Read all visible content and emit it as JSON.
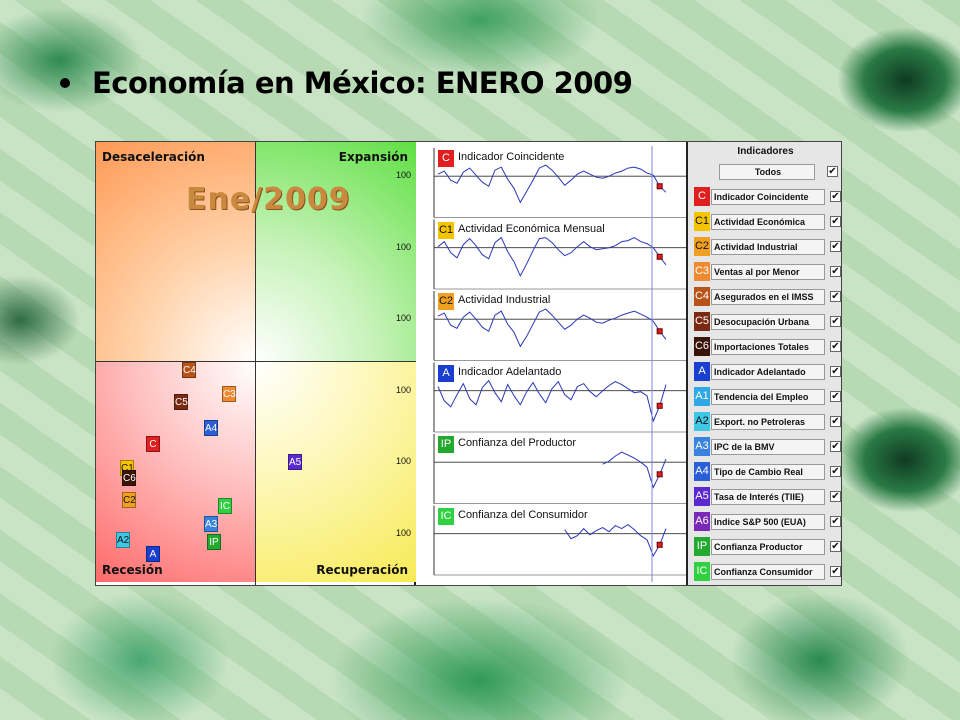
{
  "slide": {
    "title": "Economía en México: ENERO 2009"
  },
  "quadrant": {
    "labels": {
      "top_left": "Desaceleración",
      "top_right": "Expansión",
      "bottom_left": "Recesión",
      "bottom_right": "Recuperación"
    },
    "date_label": "Ene/2009"
  },
  "chart_data": {
    "type": "line",
    "axis_reference_label": "100",
    "series": [
      {
        "code": "C",
        "name": "Indicador Coincidente",
        "values": [
          100.2,
          100.5,
          99.6,
          99.3,
          100.4,
          100.8,
          100.1,
          99.4,
          99.0,
          100.6,
          100.9,
          99.7,
          98.8,
          97.4,
          98.5,
          99.6,
          100.8,
          101.1,
          100.6,
          99.9,
          99.1,
          99.6,
          100.2,
          100.5,
          100.2,
          99.9,
          99.8,
          100.0,
          100.3,
          100.5,
          100.8,
          100.9,
          100.7,
          100.3,
          100.1,
          99.0,
          98.4
        ]
      },
      {
        "code": "C1",
        "name": "Actividad Económica Mensual",
        "values": [
          100.1,
          100.6,
          99.5,
          99.0,
          100.3,
          100.9,
          100.2,
          99.3,
          98.9,
          100.5,
          101.0,
          99.6,
          98.6,
          97.2,
          98.4,
          99.7,
          100.9,
          101.0,
          100.5,
          99.8,
          99.2,
          99.5,
          100.1,
          100.6,
          100.1,
          99.8,
          99.9,
          100.0,
          100.2,
          100.6,
          100.7,
          101.0,
          100.6,
          100.4,
          100.0,
          99.1,
          98.3
        ]
      },
      {
        "code": "C2",
        "name": "Actividad Industrial",
        "values": [
          100.3,
          100.6,
          99.4,
          99.1,
          100.2,
          100.7,
          100.0,
          99.2,
          98.8,
          100.4,
          100.8,
          99.5,
          98.7,
          97.3,
          98.3,
          99.5,
          100.7,
          101.0,
          100.4,
          99.7,
          99.0,
          99.4,
          100.0,
          100.4,
          100.1,
          99.7,
          99.6,
          99.9,
          100.1,
          100.4,
          100.6,
          100.8,
          100.5,
          100.2,
          99.8,
          98.8,
          98.0
        ]
      },
      {
        "code": "A",
        "name": "Indicador Adelantado",
        "values": [
          100.4,
          99.0,
          98.4,
          99.6,
          100.7,
          99.2,
          98.6,
          100.3,
          101.0,
          99.8,
          98.9,
          100.6,
          99.5,
          98.6,
          99.9,
          100.8,
          99.7,
          98.8,
          100.2,
          100.9,
          99.6,
          99.1,
          100.4,
          100.7,
          99.9,
          99.4,
          100.0,
          100.5,
          100.9,
          100.6,
          100.2,
          99.8,
          99.9,
          99.5,
          97.0,
          98.5,
          100.6
        ]
      },
      {
        "code": "IP",
        "name": "Confianza del Productor",
        "values": [
          null,
          null,
          null,
          null,
          null,
          null,
          null,
          null,
          null,
          null,
          null,
          null,
          null,
          null,
          null,
          null,
          null,
          null,
          null,
          null,
          null,
          null,
          null,
          null,
          null,
          null,
          99.8,
          100.1,
          100.6,
          101.0,
          100.7,
          100.4,
          100.0,
          99.5,
          97.5,
          98.8,
          100.3
        ]
      },
      {
        "code": "IC",
        "name": "Confianza del Consumidor",
        "values": [
          null,
          null,
          null,
          null,
          null,
          null,
          null,
          null,
          null,
          null,
          null,
          null,
          null,
          null,
          null,
          null,
          null,
          null,
          null,
          null,
          100.4,
          99.5,
          99.8,
          100.5,
          99.9,
          100.3,
          100.6,
          100.2,
          100.8,
          100.5,
          100.9,
          100.4,
          99.8,
          99.4,
          97.8,
          98.9,
          100.5
        ]
      }
    ]
  },
  "indicators": {
    "title": "Indicadores",
    "all_label": "Todos",
    "check_mark": "✔",
    "items": [
      {
        "code": "C",
        "label": "Indicador Coincidente",
        "color": "#e02020",
        "text_color": "#ffffff"
      },
      {
        "code": "C1",
        "label": "Actividad Económica",
        "color": "#f5c400",
        "text_color": "#111111"
      },
      {
        "code": "C2",
        "label": "Actividad Industrial",
        "color": "#f0a020",
        "text_color": "#111111"
      },
      {
        "code": "C3",
        "label": "Ventas al por Menor",
        "color": "#f08a30",
        "text_color": "#ffffff"
      },
      {
        "code": "C4",
        "label": "Asegurados en el IMSS",
        "color": "#b8541a",
        "text_color": "#ffffff"
      },
      {
        "code": "C5",
        "label": "Desocupación Urbana",
        "color": "#7a2a12",
        "text_color": "#ffffff"
      },
      {
        "code": "C6",
        "label": "Importaciones Totales",
        "color": "#3a1408",
        "text_color": "#ffffff"
      },
      {
        "code": "A",
        "label": "Indicador Adelantado",
        "color": "#1a3fd0",
        "text_color": "#ffffff"
      },
      {
        "code": "A1",
        "label": "Tendencia del Empleo",
        "color": "#2fa8e8",
        "text_color": "#ffffff"
      },
      {
        "code": "A2",
        "label": "Export. no Petroleras",
        "color": "#3fc7e6",
        "text_color": "#111111"
      },
      {
        "code": "A3",
        "label": "IPC de la BMV",
        "color": "#3a82e0",
        "text_color": "#ffffff"
      },
      {
        "code": "A4",
        "label": "Tipo de Cambio Real",
        "color": "#2a5fd8",
        "text_color": "#ffffff"
      },
      {
        "code": "A5",
        "label": "Tasa de Interés (TIIE)",
        "color": "#5a2ad0",
        "text_color": "#ffffff"
      },
      {
        "code": "A6",
        "label": "Indice S&P 500 (EUA)",
        "color": "#7a28b8",
        "text_color": "#ffffff"
      },
      {
        "code": "IP",
        "label": "Confianza Productor",
        "color": "#23a830",
        "text_color": "#ffffff"
      },
      {
        "code": "IC",
        "label": "Confianza Consumidor",
        "color": "#30d040",
        "text_color": "#ffffff"
      }
    ]
  },
  "badges": [
    {
      "code": "C4",
      "color": "#b8541a",
      "text_color": "#ffffff"
    },
    {
      "code": "C3",
      "color": "#f08a30",
      "text_color": "#ffffff"
    },
    {
      "code": "C5",
      "color": "#7a2a12",
      "text_color": "#ffffff"
    },
    {
      "code": "A4",
      "color": "#2a5fd8",
      "text_color": "#ffffff"
    },
    {
      "code": "C",
      "color": "#e02020",
      "text_color": "#ffffff"
    },
    {
      "code": "A5",
      "color": "#5a2ad0",
      "text_color": "#ffffff"
    },
    {
      "code": "C1",
      "color": "#f5c400",
      "text_color": "#111111"
    },
    {
      "code": "C6",
      "color": "#3a1408",
      "text_color": "#ffffff"
    },
    {
      "code": "C2",
      "color": "#f0a020",
      "text_color": "#111111"
    },
    {
      "code": "IC",
      "color": "#30d040",
      "text_color": "#ffffff"
    },
    {
      "code": "A3",
      "color": "#3a82e0",
      "text_color": "#ffffff"
    },
    {
      "code": "A2",
      "color": "#3fc7e6",
      "text_color": "#111111"
    },
    {
      "code": "IP",
      "color": "#23a830",
      "text_color": "#ffffff"
    },
    {
      "code": "A",
      "color": "#1a3fd0",
      "text_color": "#ffffff"
    }
  ]
}
